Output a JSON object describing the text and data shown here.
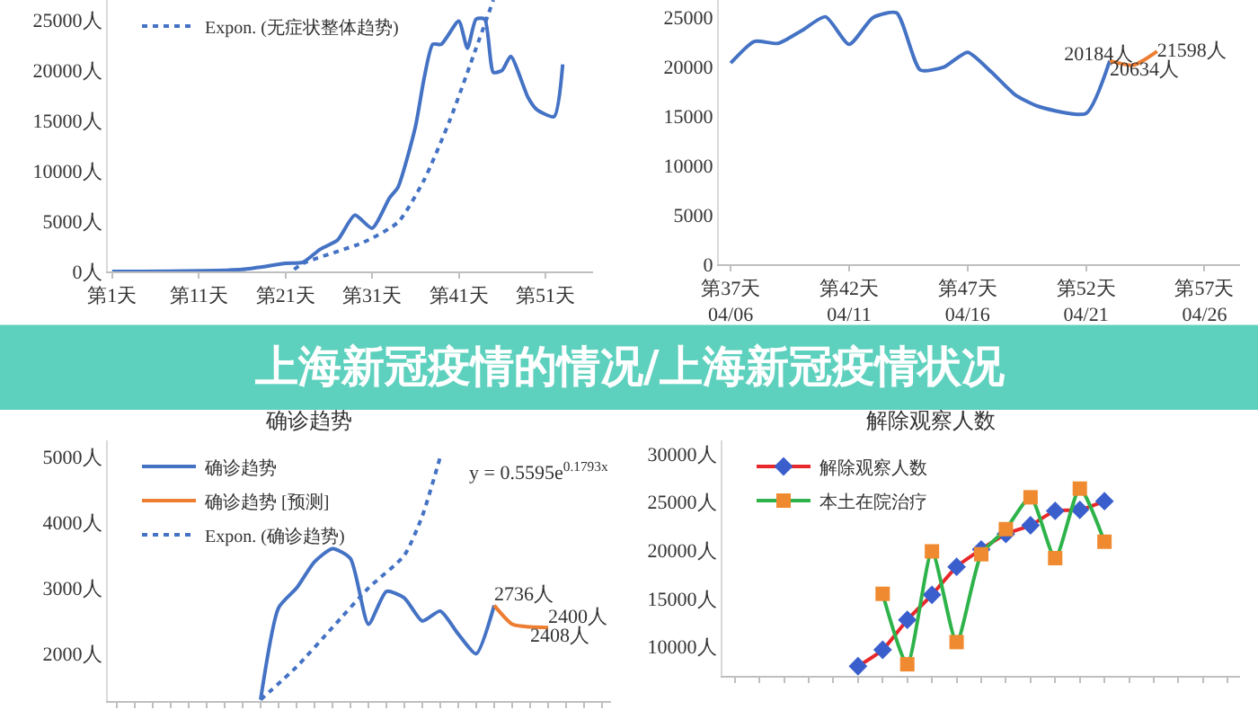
{
  "chart_data": [
    {
      "type": "line",
      "ylim": [
        0,
        27000
      ],
      "categories": [
        "第1天",
        null,
        null,
        null,
        null,
        null,
        null,
        null,
        null,
        null,
        "第11天",
        null,
        null,
        null,
        null,
        null,
        null,
        null,
        null,
        null,
        "第21天",
        null,
        null,
        null,
        null,
        null,
        null,
        null,
        null,
        null,
        "第31天",
        null,
        null,
        null,
        null,
        null,
        null,
        null,
        null,
        null,
        "第41天",
        null,
        null,
        null,
        null,
        null,
        null,
        null,
        null,
        null,
        "第51天",
        null,
        null,
        null,
        null,
        null
      ],
      "yticks": [
        {
          "value": 0,
          "label": "0人"
        },
        {
          "value": 5000,
          "label": "5000人"
        },
        {
          "value": 10000,
          "label": "10000人"
        },
        {
          "value": 15000,
          "label": "15000人"
        },
        {
          "value": 20000,
          "label": "20000人"
        },
        {
          "value": 25000,
          "label": "25000人"
        }
      ],
      "grid": false,
      "legend": "top left",
      "series": [
        {
          "color": "#4472c4",
          "values": [
            0,
            null,
            null,
            null,
            null,
            null,
            null,
            null,
            null,
            null,
            null,
            null,
            null,
            null,
            null,
            200,
            null,
            null,
            null,
            null,
            800,
            null,
            900,
            null,
            2200,
            null,
            3100,
            null,
            5600,
            null,
            4300,
            null,
            7300,
            8400,
            null,
            14400,
            19200,
            22600,
            22600,
            null,
            24900,
            22200,
            25100,
            25100,
            19800,
            20000,
            21400,
            null,
            17300,
            16100,
            null,
            15400,
            20600,
            null,
            null,
            null
          ]
        },
        {
          "name": "Expon. (无症状整体趋势)",
          "color": "#4472c4",
          "line_style": "dotted",
          "values": [
            null,
            null,
            null,
            null,
            null,
            null,
            null,
            null,
            null,
            null,
            null,
            null,
            null,
            null,
            null,
            null,
            null,
            null,
            null,
            null,
            null,
            200,
            800,
            null,
            null,
            null,
            null,
            null,
            null,
            2900,
            null,
            null,
            null,
            4900,
            null,
            null,
            9100,
            null,
            null,
            15100,
            null,
            null,
            22200,
            null,
            27000,
            null,
            null,
            null,
            null,
            null,
            null,
            null,
            null,
            null,
            null,
            null
          ]
        }
      ]
    },
    {
      "type": "line",
      "ylim": [
        0,
        26800
      ],
      "categories": [
        "第37天\n04/06",
        null,
        null,
        null,
        null,
        "第42天\n04/11",
        null,
        null,
        null,
        null,
        "第47天\n04/16",
        null,
        null,
        null,
        null,
        "第52天\n04/21",
        null,
        null,
        null,
        null,
        "第57天\n04/26",
        null
      ],
      "yticks": [
        0,
        5000,
        10000,
        15000,
        20000,
        25000
      ],
      "grid": false,
      "series": [
        {
          "color": "#4472c4",
          "values": [
            20400,
            22600,
            22400,
            23700,
            25100,
            22300,
            25000,
            25500,
            19700,
            20000,
            21500,
            19500,
            17200,
            16000,
            null,
            15300,
            20634,
            null,
            null,
            null,
            null,
            null
          ]
        },
        {
          "color": "#ed7d31",
          "values": [
            null,
            null,
            null,
            null,
            null,
            null,
            null,
            null,
            null,
            null,
            null,
            null,
            null,
            null,
            null,
            null,
            20634,
            20184,
            21598,
            null,
            null,
            null
          ],
          "value_labels": [
            null,
            null,
            null,
            null,
            null,
            null,
            null,
            null,
            null,
            null,
            null,
            null,
            null,
            null,
            null,
            null,
            "20634人",
            "20184人",
            "21598人",
            null,
            null,
            null
          ]
        }
      ]
    },
    {
      "type": "line",
      "title": "确诊趋势",
      "tick_labels": "y",
      "ylim": [
        1280,
        5250
      ],
      "categories": [
        null,
        null,
        null,
        null,
        null,
        null,
        null,
        null,
        null,
        null,
        null,
        null,
        null,
        null,
        null,
        null,
        null,
        null,
        null,
        null,
        null,
        null,
        null,
        null,
        null,
        null,
        null,
        null
      ],
      "yticks": [
        {
          "value": 2000,
          "label": "2000人"
        },
        {
          "value": 3000,
          "label": "3000人"
        },
        {
          "value": 4000,
          "label": "4000人"
        },
        {
          "value": 5000,
          "label": "5000人"
        }
      ],
      "grid": false,
      "legend": "top left",
      "annotations": [
        "y = 0.5595e$^{0.1793x}$"
      ],
      "series": [
        {
          "name": "确诊趋势",
          "color": "#4472c4",
          "values": [
            null,
            null,
            null,
            null,
            null,
            null,
            null,
            null,
            1300,
            2700,
            3000,
            3400,
            3600,
            3450,
            2450,
            2950,
            2850,
            2500,
            2650,
            2300,
            2000,
            2736,
            null,
            null,
            null,
            null,
            null,
            null
          ]
        },
        {
          "name": "确诊趋势 [预测]",
          "color": "#ed7d31",
          "values": [
            null,
            null,
            null,
            null,
            null,
            null,
            null,
            null,
            null,
            null,
            null,
            null,
            null,
            null,
            null,
            null,
            null,
            null,
            null,
            null,
            null,
            2736,
            2450,
            2408,
            2400,
            null,
            null,
            null
          ],
          "value_labels": [
            null,
            null,
            null,
            null,
            null,
            null,
            null,
            null,
            null,
            null,
            null,
            null,
            null,
            null,
            null,
            null,
            null,
            null,
            null,
            null,
            null,
            "2736人",
            null,
            "2408人",
            "2400人",
            null,
            null,
            null
          ]
        },
        {
          "name": "Expon. (确诊趋势)",
          "color": "#4472c4",
          "line_style": "dotted",
          "values": [
            null,
            null,
            null,
            null,
            null,
            null,
            null,
            null,
            1300,
            null,
            1800,
            null,
            2400,
            null,
            3000,
            null,
            3500,
            4100,
            5000,
            null,
            null,
            null,
            null,
            null,
            null,
            null,
            null,
            null
          ]
        }
      ]
    },
    {
      "type": "line",
      "title": "解除观察人数",
      "tick_labels": "y",
      "ylim": [
        7000,
        31400
      ],
      "categories": [
        null,
        null,
        null,
        null,
        null,
        null,
        null,
        null,
        null,
        null,
        null,
        null,
        null,
        null,
        null,
        null,
        null,
        null,
        null,
        null,
        null
      ],
      "yticks": [
        {
          "value": 10000,
          "label": "10000人"
        },
        {
          "value": 15000,
          "label": "15000人"
        },
        {
          "value": 20000,
          "label": "20000人"
        },
        {
          "value": 25000,
          "label": "25000人"
        },
        {
          "value": 30000,
          "label": "30000人"
        }
      ],
      "grid": false,
      "legend": "top left",
      "series": [
        {
          "name": "解除观察人数",
          "color": "#e8282b",
          "marker": "diamond",
          "colors": [
            "#3a5fcd",
            "#3a5fcd",
            "#3a5fcd",
            "#3a5fcd",
            "#3a5fcd",
            "#3a5fcd",
            "#3a5fcd",
            "#3a5fcd",
            "#3a5fcd",
            "#3a5fcd",
            "#3a5fcd",
            "#3a5fcd",
            "#3a5fcd",
            "#3a5fcd",
            "#3a5fcd",
            "#3a5fcd",
            "#3a5fcd",
            "#3a5fcd",
            "#3a5fcd",
            "#3a5fcd",
            "#3a5fcd"
          ],
          "values": [
            null,
            null,
            null,
            null,
            null,
            8000,
            9700,
            12800,
            15400,
            18300,
            20100,
            21700,
            22600,
            24100,
            24200,
            25100,
            null,
            null,
            null,
            null,
            null
          ]
        },
        {
          "name": "本土在院治疗",
          "color": "#2db34a",
          "marker": "square",
          "colors": [
            "#f08a30",
            "#f08a30",
            "#f08a30",
            "#f08a30",
            "#f08a30",
            "#f08a30",
            "#f08a30",
            "#f08a30",
            "#f08a30",
            "#f08a30",
            "#f08a30",
            "#f08a30",
            "#f08a30",
            "#f08a30",
            "#f08a30",
            "#f08a30",
            "#f08a30",
            "#f08a30",
            "#f08a30",
            "#f08a30",
            "#f08a30"
          ],
          "values": [
            null,
            null,
            null,
            null,
            null,
            null,
            15500,
            8200,
            19900,
            10500,
            19600,
            22200,
            25500,
            19200,
            26400,
            20900,
            null,
            null,
            null,
            null,
            null
          ]
        }
      ]
    },
    {
      "type": "other",
      "title": "上海新冠疫情的情况/上海新冠疫情状况"
    }
  ]
}
